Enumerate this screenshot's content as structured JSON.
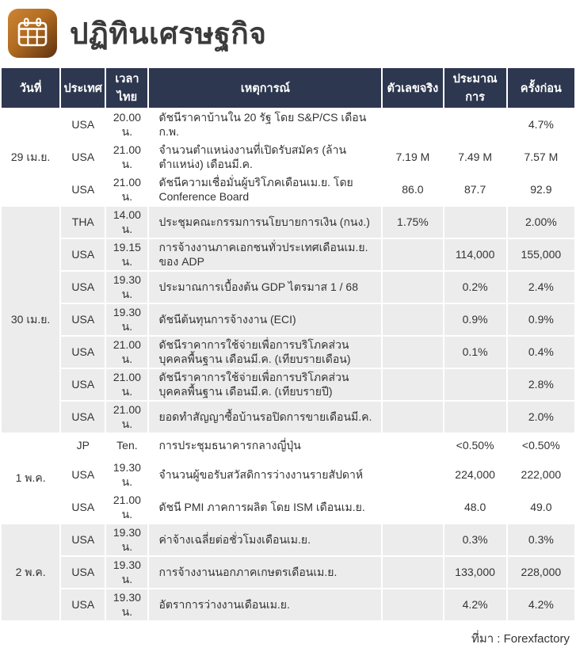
{
  "page": {
    "title": "ปฏิทินเศรษฐกิจ",
    "icon": "calendar-icon",
    "source_note": "ที่มา : Forexfactory"
  },
  "colors": {
    "header_bg": "#2d374f",
    "row_alt_bg": "#ececec",
    "cell_text": "#333333",
    "title_text": "#3b3b3b",
    "icon_gradient_start": "#cd8534",
    "icon_gradient_end": "#5e3110"
  },
  "table": {
    "columns": [
      "วันที่",
      "ประเทศ",
      "เวลาไทย",
      "เหตุการณ์",
      "ตัวเลขจริง",
      "ประมาณการ",
      "ครั้งก่อน"
    ],
    "groups": [
      {
        "date": "29 เม.ย.",
        "shaded": false,
        "rows": [
          {
            "country": "USA",
            "time": "20.00 น.",
            "event": "ดัชนีราคาบ้านใน 20 รัฐ โดย S&P/CS เดือนก.พ.",
            "actual": "",
            "forecast": "",
            "previous": "4.7%"
          },
          {
            "country": "USA",
            "time": "21.00 น.",
            "event": "จำนวนตำแหน่งงานที่เปิดรับสมัคร (ล้านตำแหน่ง) เดือนมี.ค.",
            "actual": "7.19 M",
            "forecast": "7.49 M",
            "previous": "7.57 M"
          },
          {
            "country": "USA",
            "time": "21.00 น.",
            "event": "ดัชนีความเชื่อมั่นผู้บริโภคเดือนเม.ย. โดย Conference Board",
            "actual": "86.0",
            "forecast": "87.7",
            "previous": "92.9"
          }
        ]
      },
      {
        "date": "30 เม.ย.",
        "shaded": true,
        "rows": [
          {
            "country": "THA",
            "time": "14.00 น.",
            "event": "ประชุมคณะกรรมการนโยบายการเงิน (กนง.)",
            "actual": "1.75%",
            "forecast": "",
            "previous": "2.00%"
          },
          {
            "country": "USA",
            "time": "19.15 น.",
            "event": "การจ้างงานภาคเอกชนทั่วประเทศเดือนเม.ย. ของ ADP",
            "actual": "",
            "forecast": "114,000",
            "previous": "155,000"
          },
          {
            "country": "USA",
            "time": "19.30 น.",
            "event": "ประมาณการเบื้องต้น GDP ไตรมาส 1 / 68",
            "actual": "",
            "forecast": "0.2%",
            "previous": "2.4%"
          },
          {
            "country": "USA",
            "time": "19.30 น.",
            "event": "ดัชนีต้นทุนการจ้างงาน (ECI)",
            "actual": "",
            "forecast": "0.9%",
            "previous": "0.9%"
          },
          {
            "country": "USA",
            "time": "21.00 น.",
            "event": "ดัชนีราคาการใช้จ่ายเพื่อการบริโภคส่วนบุคคลพื้นฐาน เดือนมี.ค. (เทียบรายเดือน)",
            "actual": "",
            "forecast": "0.1%",
            "previous": "0.4%"
          },
          {
            "country": "USA",
            "time": "21.00 น.",
            "event": "ดัชนีราคาการใช้จ่ายเพื่อการบริโภคส่วนบุคคลพื้นฐาน เดือนมี.ค. (เทียบรายปี)",
            "actual": "",
            "forecast": "",
            "previous": "2.8%"
          },
          {
            "country": "USA",
            "time": "21.00 น.",
            "event": "ยอดทำสัญญาซื้อบ้านรอปิดการขายเดือนมี.ค.",
            "actual": "",
            "forecast": "",
            "previous": "2.0%"
          }
        ]
      },
      {
        "date": "1 พ.ค.",
        "shaded": false,
        "rows": [
          {
            "country": "JP",
            "time": "Ten.",
            "event": "การประชุมธนาคารกลางญี่ปุ่น",
            "actual": "",
            "forecast": "<0.50%",
            "previous": "<0.50%"
          },
          {
            "country": "USA",
            "time": "19.30 น.",
            "event": "จำนวนผู้ขอรับสวัสดิการว่างงานรายสัปดาห์",
            "actual": "",
            "forecast": "224,000",
            "previous": "222,000"
          },
          {
            "country": "USA",
            "time": "21.00 น.",
            "event": "ดัชนี PMI ภาคการผลิต โดย ISM เดือนเม.ย.",
            "actual": "",
            "forecast": "48.0",
            "previous": "49.0"
          }
        ]
      },
      {
        "date": "2 พ.ค.",
        "shaded": true,
        "rows": [
          {
            "country": "USA",
            "time": "19.30 น.",
            "event": "ค่าจ้างเฉลี่ยต่อชั่วโมงเดือนเม.ย.",
            "actual": "",
            "forecast": "0.3%",
            "previous": "0.3%"
          },
          {
            "country": "USA",
            "time": "19.30 น.",
            "event": "การจ้างงานนอกภาคเกษตรเดือนเม.ย.",
            "actual": "",
            "forecast": "133,000",
            "previous": "228,000"
          },
          {
            "country": "USA",
            "time": "19.30 น.",
            "event": "อัตราการว่างงานเดือนเม.ย.",
            "actual": "",
            "forecast": "4.2%",
            "previous": "4.2%"
          }
        ]
      }
    ]
  },
  "chart_data": {
    "type": "table",
    "title": "ปฏิทินเศรษฐกิจ",
    "source": "ที่มา : Forexfactory",
    "columns": [
      "วันที่",
      "ประเทศ",
      "เวลาไทย",
      "เหตุการณ์",
      "ตัวเลขจริง",
      "ประมาณการ",
      "ครั้งก่อน"
    ],
    "rows": [
      [
        "29 เม.ย.",
        "USA",
        "20.00 น.",
        "ดัชนีราคาบ้านใน 20 รัฐ โดย S&P/CS เดือนก.พ.",
        "",
        "",
        "4.7%"
      ],
      [
        "29 เม.ย.",
        "USA",
        "21.00 น.",
        "จำนวนตำแหน่งงานที่เปิดรับสมัคร (ล้านตำแหน่ง) เดือนมี.ค.",
        "7.19 M",
        "7.49 M",
        "7.57 M"
      ],
      [
        "29 เม.ย.",
        "USA",
        "21.00 น.",
        "ดัชนีความเชื่อมั่นผู้บริโภคเดือนเม.ย. โดย Conference Board",
        "86.0",
        "87.7",
        "92.9"
      ],
      [
        "30 เม.ย.",
        "THA",
        "14.00 น.",
        "ประชุมคณะกรรมการนโยบายการเงิน (กนง.)",
        "1.75%",
        "",
        "2.00%"
      ],
      [
        "30 เม.ย.",
        "USA",
        "19.15 น.",
        "การจ้างงานภาคเอกชนทั่วประเทศเดือนเม.ย. ของ ADP",
        "",
        "114,000",
        "155,000"
      ],
      [
        "30 เม.ย.",
        "USA",
        "19.30 น.",
        "ประมาณการเบื้องต้น GDP ไตรมาส 1 / 68",
        "",
        "0.2%",
        "2.4%"
      ],
      [
        "30 เม.ย.",
        "USA",
        "19.30 น.",
        "ดัชนีต้นทุนการจ้างงาน (ECI)",
        "",
        "0.9%",
        "0.9%"
      ],
      [
        "30 เม.ย.",
        "USA",
        "21.00 น.",
        "ดัชนีราคาการใช้จ่ายเพื่อการบริโภคส่วนบุคคลพื้นฐาน เดือนมี.ค. (เทียบรายเดือน)",
        "",
        "0.1%",
        "0.4%"
      ],
      [
        "30 เม.ย.",
        "USA",
        "21.00 น.",
        "ดัชนีราคาการใช้จ่ายเพื่อการบริโภคส่วนบุคคลพื้นฐาน เดือนมี.ค. (เทียบรายปี)",
        "",
        "",
        "2.8%"
      ],
      [
        "30 เม.ย.",
        "USA",
        "21.00 น.",
        "ยอดทำสัญญาซื้อบ้านรอปิดการขายเดือนมี.ค.",
        "",
        "",
        "2.0%"
      ],
      [
        "1 พ.ค.",
        "JP",
        "Ten.",
        "การประชุมธนาคารกลางญี่ปุ่น",
        "",
        "<0.50%",
        "<0.50%"
      ],
      [
        "1 พ.ค.",
        "USA",
        "19.30 น.",
        "จำนวนผู้ขอรับสวัสดิการว่างงานรายสัปดาห์",
        "",
        "224,000",
        "222,000"
      ],
      [
        "1 พ.ค.",
        "USA",
        "21.00 น.",
        "ดัชนี PMI ภาคการผลิต โดย ISM เดือนเม.ย.",
        "",
        "48.0",
        "49.0"
      ],
      [
        "2 พ.ค.",
        "USA",
        "19.30 น.",
        "ค่าจ้างเฉลี่ยต่อชั่วโมงเดือนเม.ย.",
        "",
        "0.3%",
        "0.3%"
      ],
      [
        "2 พ.ค.",
        "USA",
        "19.30 น.",
        "การจ้างงานนอกภาคเกษตรเดือนเม.ย.",
        "",
        "133,000",
        "228,000"
      ],
      [
        "2 พ.ค.",
        "USA",
        "19.30 น.",
        "อัตราการว่างงานเดือนเม.ย.",
        "",
        "4.2%",
        "4.2%"
      ]
    ]
  }
}
